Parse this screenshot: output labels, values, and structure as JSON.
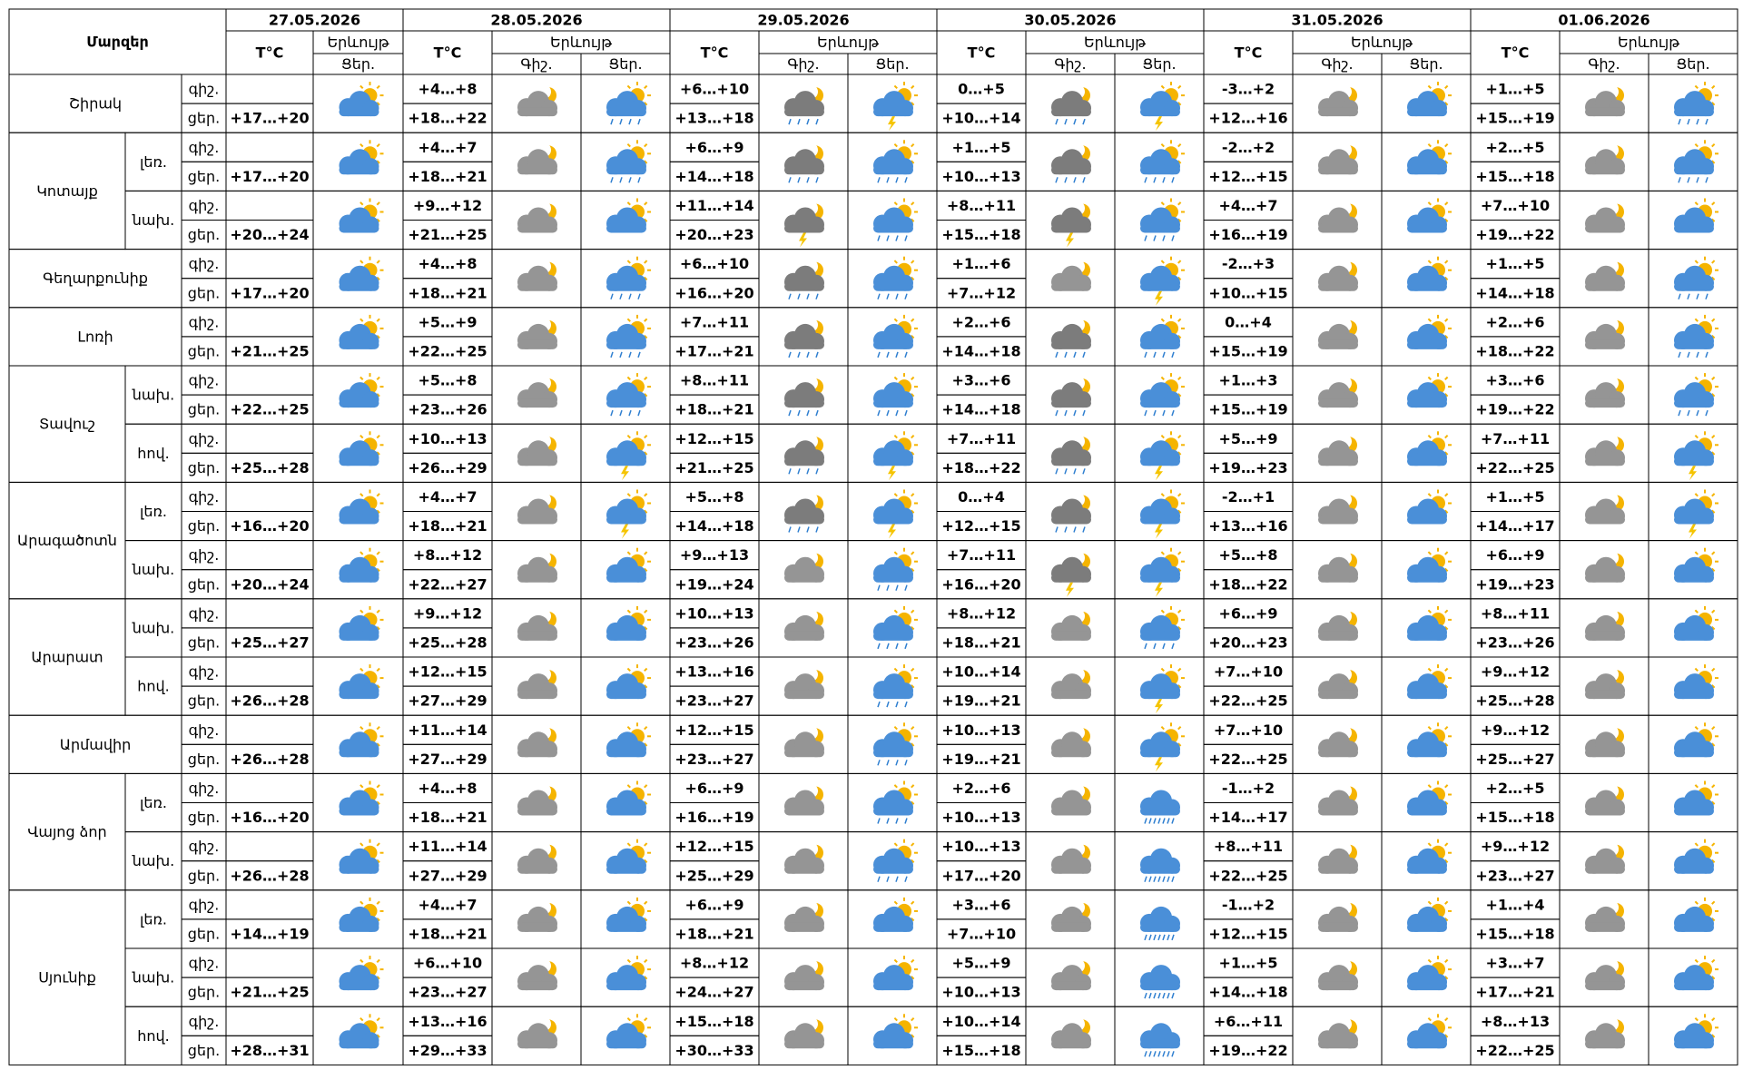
{
  "header": {
    "region": "Մարզեր",
    "dates": [
      "27.05.2026",
      "28.05.2026",
      "29.05.2026",
      "30.05.2026",
      "31.05.2026",
      "01.06.2026"
    ],
    "temp": "T°C",
    "phenomenon": "Երևույթ",
    "night": "Գիշ.",
    "day": "Ցեր."
  },
  "row_labels": {
    "night": "գիշ.",
    "day": "ցեր."
  },
  "regions": [
    {
      "name": "Շիրակ",
      "zones": [
        {
          "day1": "+17…+20",
          "forecast": [
            [
              "+4…+8",
              "+18…+22"
            ],
            [
              "+6…+10",
              "+13…+18"
            ],
            [
              "0…+5",
              "+10…+14"
            ],
            [
              "-3…+2",
              "+12…+16"
            ],
            [
              "+1…+5",
              "+15…+19"
            ]
          ]
        }
      ]
    },
    {
      "name": "Կոտայք",
      "zones": [
        {
          "label": "լեռ.",
          "day1": "+17…+20",
          "forecast": [
            [
              "+4…+7",
              "+18…+21"
            ],
            [
              "+6…+9",
              "+14…+18"
            ],
            [
              "+1…+5",
              "+10…+13"
            ],
            [
              "-2…+2",
              "+12…+15"
            ],
            [
              "+2…+5",
              "+15…+18"
            ]
          ]
        },
        {
          "label": "նախ.",
          "day1": "+20…+24",
          "forecast": [
            [
              "+9…+12",
              "+21…+25"
            ],
            [
              "+11…+14",
              "+20…+23"
            ],
            [
              "+8…+11",
              "+15…+18"
            ],
            [
              "+4…+7",
              "+16…+19"
            ],
            [
              "+7…+10",
              "+19…+22"
            ]
          ]
        }
      ]
    },
    {
      "name": "Գեղարքունիք",
      "zones": [
        {
          "day1": "+17…+20",
          "forecast": [
            [
              "+4…+8",
              "+18…+21"
            ],
            [
              "+6…+10",
              "+16…+20"
            ],
            [
              "+1…+6",
              "+7…+12"
            ],
            [
              "-2…+3",
              "+10…+15"
            ],
            [
              "+1…+5",
              "+14…+18"
            ]
          ]
        }
      ]
    },
    {
      "name": "Լոռի",
      "zones": [
        {
          "day1": "+21…+25",
          "forecast": [
            [
              "+5…+9",
              "+22…+25"
            ],
            [
              "+7…+11",
              "+17…+21"
            ],
            [
              "+2…+6",
              "+14…+18"
            ],
            [
              "0…+4",
              "+15…+19"
            ],
            [
              "+2…+6",
              "+18…+22"
            ]
          ]
        }
      ]
    },
    {
      "name": "Տավուշ",
      "zones": [
        {
          "label": "նախ.",
          "day1": "+22…+25",
          "forecast": [
            [
              "+5…+8",
              "+23…+26"
            ],
            [
              "+8…+11",
              "+18…+21"
            ],
            [
              "+3…+6",
              "+14…+18"
            ],
            [
              "+1…+3",
              "+15…+19"
            ],
            [
              "+3…+6",
              "+19…+22"
            ]
          ]
        },
        {
          "label": "հով.",
          "day1": "+25…+28",
          "forecast": [
            [
              "+10…+13",
              "+26…+29"
            ],
            [
              "+12…+15",
              "+21…+25"
            ],
            [
              "+7…+11",
              "+18…+22"
            ],
            [
              "+5…+9",
              "+19…+23"
            ],
            [
              "+7…+11",
              "+22…+25"
            ]
          ]
        }
      ]
    },
    {
      "name": "Արագածոտն",
      "zones": [
        {
          "label": "լեռ.",
          "day1": "+16…+20",
          "forecast": [
            [
              "+4…+7",
              "+18…+21"
            ],
            [
              "+5…+8",
              "+14…+18"
            ],
            [
              "0…+4",
              "+12…+15"
            ],
            [
              "-2…+1",
              "+13…+16"
            ],
            [
              "+1…+5",
              "+14…+17"
            ]
          ]
        },
        {
          "label": "նախ.",
          "day1": "+20…+24",
          "forecast": [
            [
              "+8…+12",
              "+22…+27"
            ],
            [
              "+9…+13",
              "+19…+24"
            ],
            [
              "+7…+11",
              "+16…+20"
            ],
            [
              "+5…+8",
              "+18…+22"
            ],
            [
              "+6…+9",
              "+19…+23"
            ]
          ]
        }
      ]
    },
    {
      "name": "Արարատ",
      "zones": [
        {
          "label": "նախ.",
          "day1": "+25…+27",
          "forecast": [
            [
              "+9…+12",
              "+25…+28"
            ],
            [
              "+10…+13",
              "+23…+26"
            ],
            [
              "+8…+12",
              "+18…+21"
            ],
            [
              "+6…+9",
              "+20…+23"
            ],
            [
              "+8…+11",
              "+23…+26"
            ]
          ]
        },
        {
          "label": "հով.",
          "day1": "+26…+28",
          "forecast": [
            [
              "+12…+15",
              "+27…+29"
            ],
            [
              "+13…+16",
              "+23…+27"
            ],
            [
              "+10…+14",
              "+19…+21"
            ],
            [
              "+7…+10",
              "+22…+25"
            ],
            [
              "+9…+12",
              "+25…+28"
            ]
          ]
        }
      ]
    },
    {
      "name": "Արմավիր",
      "zones": [
        {
          "day1": "+26…+28",
          "forecast": [
            [
              "+11…+14",
              "+27…+29"
            ],
            [
              "+12…+15",
              "+23…+27"
            ],
            [
              "+10…+13",
              "+19…+21"
            ],
            [
              "+7…+10",
              "+22…+25"
            ],
            [
              "+9…+12",
              "+25…+27"
            ]
          ]
        }
      ]
    },
    {
      "name": "Վայոց ձոր",
      "zones": [
        {
          "label": "լեռ.",
          "day1": "+16…+20",
          "forecast": [
            [
              "+4…+8",
              "+18…+21"
            ],
            [
              "+6…+9",
              "+16…+19"
            ],
            [
              "+2…+6",
              "+10…+13"
            ],
            [
              "-1…+2",
              "+14…+17"
            ],
            [
              "+2…+5",
              "+15…+18"
            ]
          ]
        },
        {
          "label": "նախ.",
          "day1": "+26…+28",
          "forecast": [
            [
              "+11…+14",
              "+27…+29"
            ],
            [
              "+12…+15",
              "+25…+29"
            ],
            [
              "+10…+13",
              "+17…+20"
            ],
            [
              "+8…+11",
              "+22…+25"
            ],
            [
              "+9…+12",
              "+23…+27"
            ]
          ]
        }
      ]
    },
    {
      "name": "Սյունիք",
      "zones": [
        {
          "label": "լեռ.",
          "day1": "+14…+19",
          "forecast": [
            [
              "+4…+7",
              "+18…+21"
            ],
            [
              "+6…+9",
              "+18…+21"
            ],
            [
              "+3…+6",
              "+7…+10"
            ],
            [
              "-1…+2",
              "+12…+15"
            ],
            [
              "+1…+4",
              "+15…+18"
            ]
          ]
        },
        {
          "label": "նախ.",
          "day1": "+21…+25",
          "forecast": [
            [
              "+6…+10",
              "+23…+27"
            ],
            [
              "+8…+12",
              "+24…+27"
            ],
            [
              "+5…+9",
              "+10…+13"
            ],
            [
              "+1…+5",
              "+14…+18"
            ],
            [
              "+3…+7",
              "+17…+21"
            ]
          ]
        },
        {
          "label": "հով.",
          "day1": "+28…+31",
          "forecast": [
            [
              "+13…+16",
              "+29…+33"
            ],
            [
              "+15…+18",
              "+30…+33"
            ],
            [
              "+10…+14",
              "+15…+18"
            ],
            [
              "+6…+11",
              "+19…+22"
            ],
            [
              "+8…+13",
              "+22…+25"
            ]
          ]
        }
      ]
    }
  ]
}
